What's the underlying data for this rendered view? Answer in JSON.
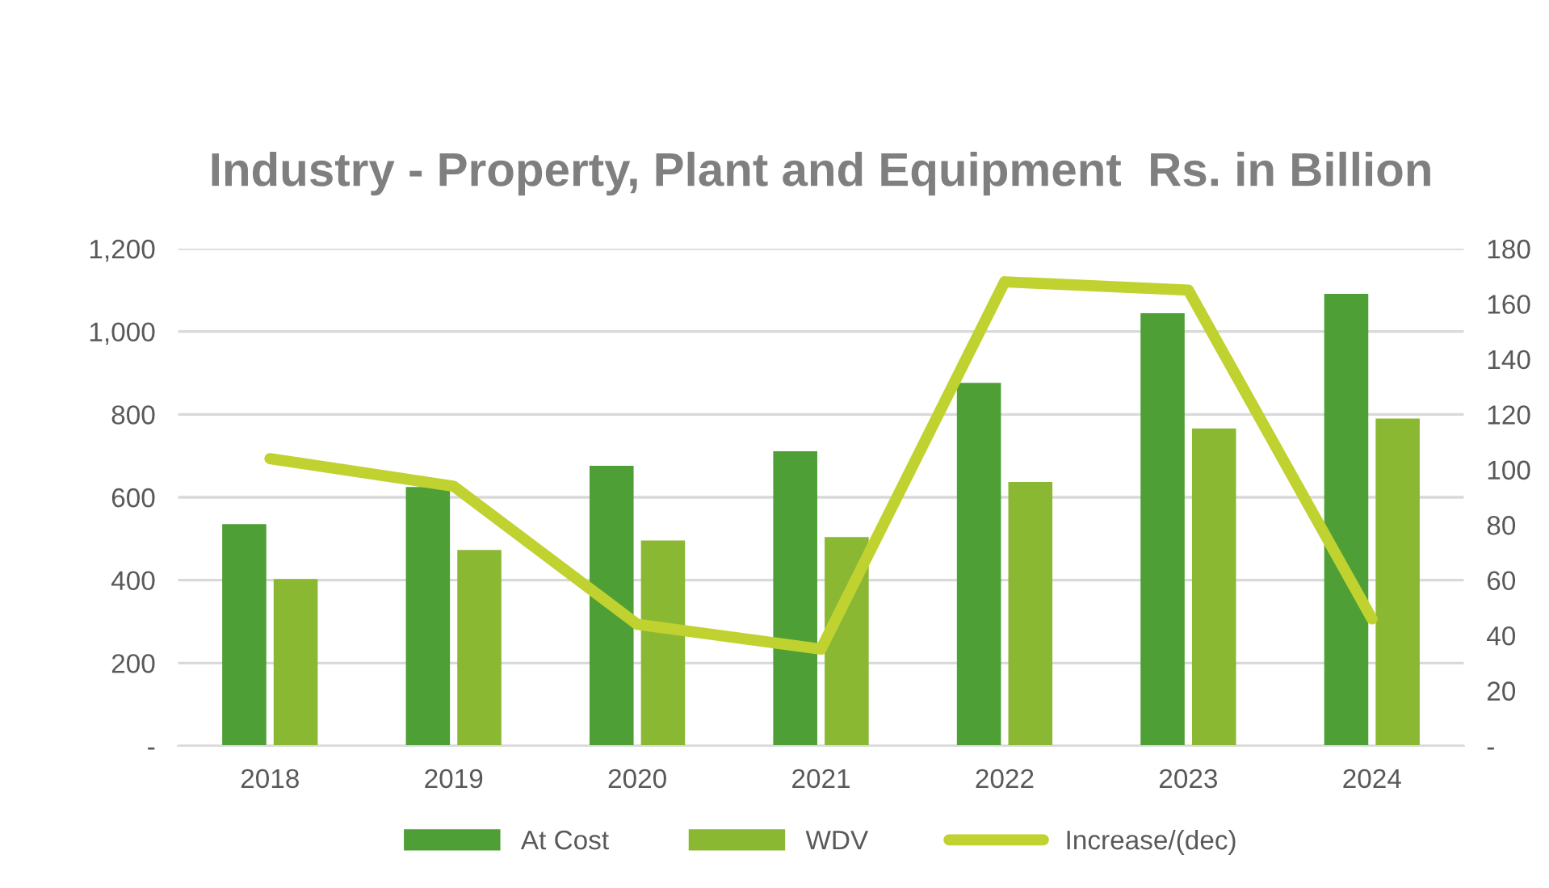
{
  "chart_data": {
    "type": "bar",
    "title": "Industry - Property, Plant and Equipment  Rs. in Billion",
    "categories": [
      "2018",
      "2019",
      "2020",
      "2021",
      "2022",
      "2023",
      "2024"
    ],
    "series": [
      {
        "name": "At Cost",
        "color": "#4e9f35",
        "values": [
          535,
          625,
          676,
          711,
          876,
          1044,
          1091
        ]
      },
      {
        "name": "WDV",
        "color": "#8ab833",
        "values": [
          403,
          473,
          496,
          504,
          637,
          766,
          790
        ]
      },
      {
        "name": "Increase/(dec)",
        "type": "line",
        "axis": "y2",
        "color": "#bfd230",
        "values": [
          104,
          94,
          44,
          35,
          168,
          165,
          46
        ]
      }
    ],
    "ylim": [
      0,
      1200
    ],
    "yticks": [
      {
        "value": 0,
        "label": "-"
      },
      {
        "value": 200,
        "label": "200"
      },
      {
        "value": 400,
        "label": "400"
      },
      {
        "value": 600,
        "label": "600"
      },
      {
        "value": 800,
        "label": "800"
      },
      {
        "value": 1000,
        "label": "1,000"
      },
      {
        "value": 1200,
        "label": "1,200"
      }
    ],
    "y2lim": [
      0,
      180
    ],
    "y2ticks": [
      {
        "value": 0,
        "label": "-"
      },
      20,
      40,
      60,
      80,
      100,
      120,
      140,
      160,
      180
    ],
    "grid": "y",
    "legend": "bottom",
    "marker": "none",
    "line_style": "solid"
  }
}
